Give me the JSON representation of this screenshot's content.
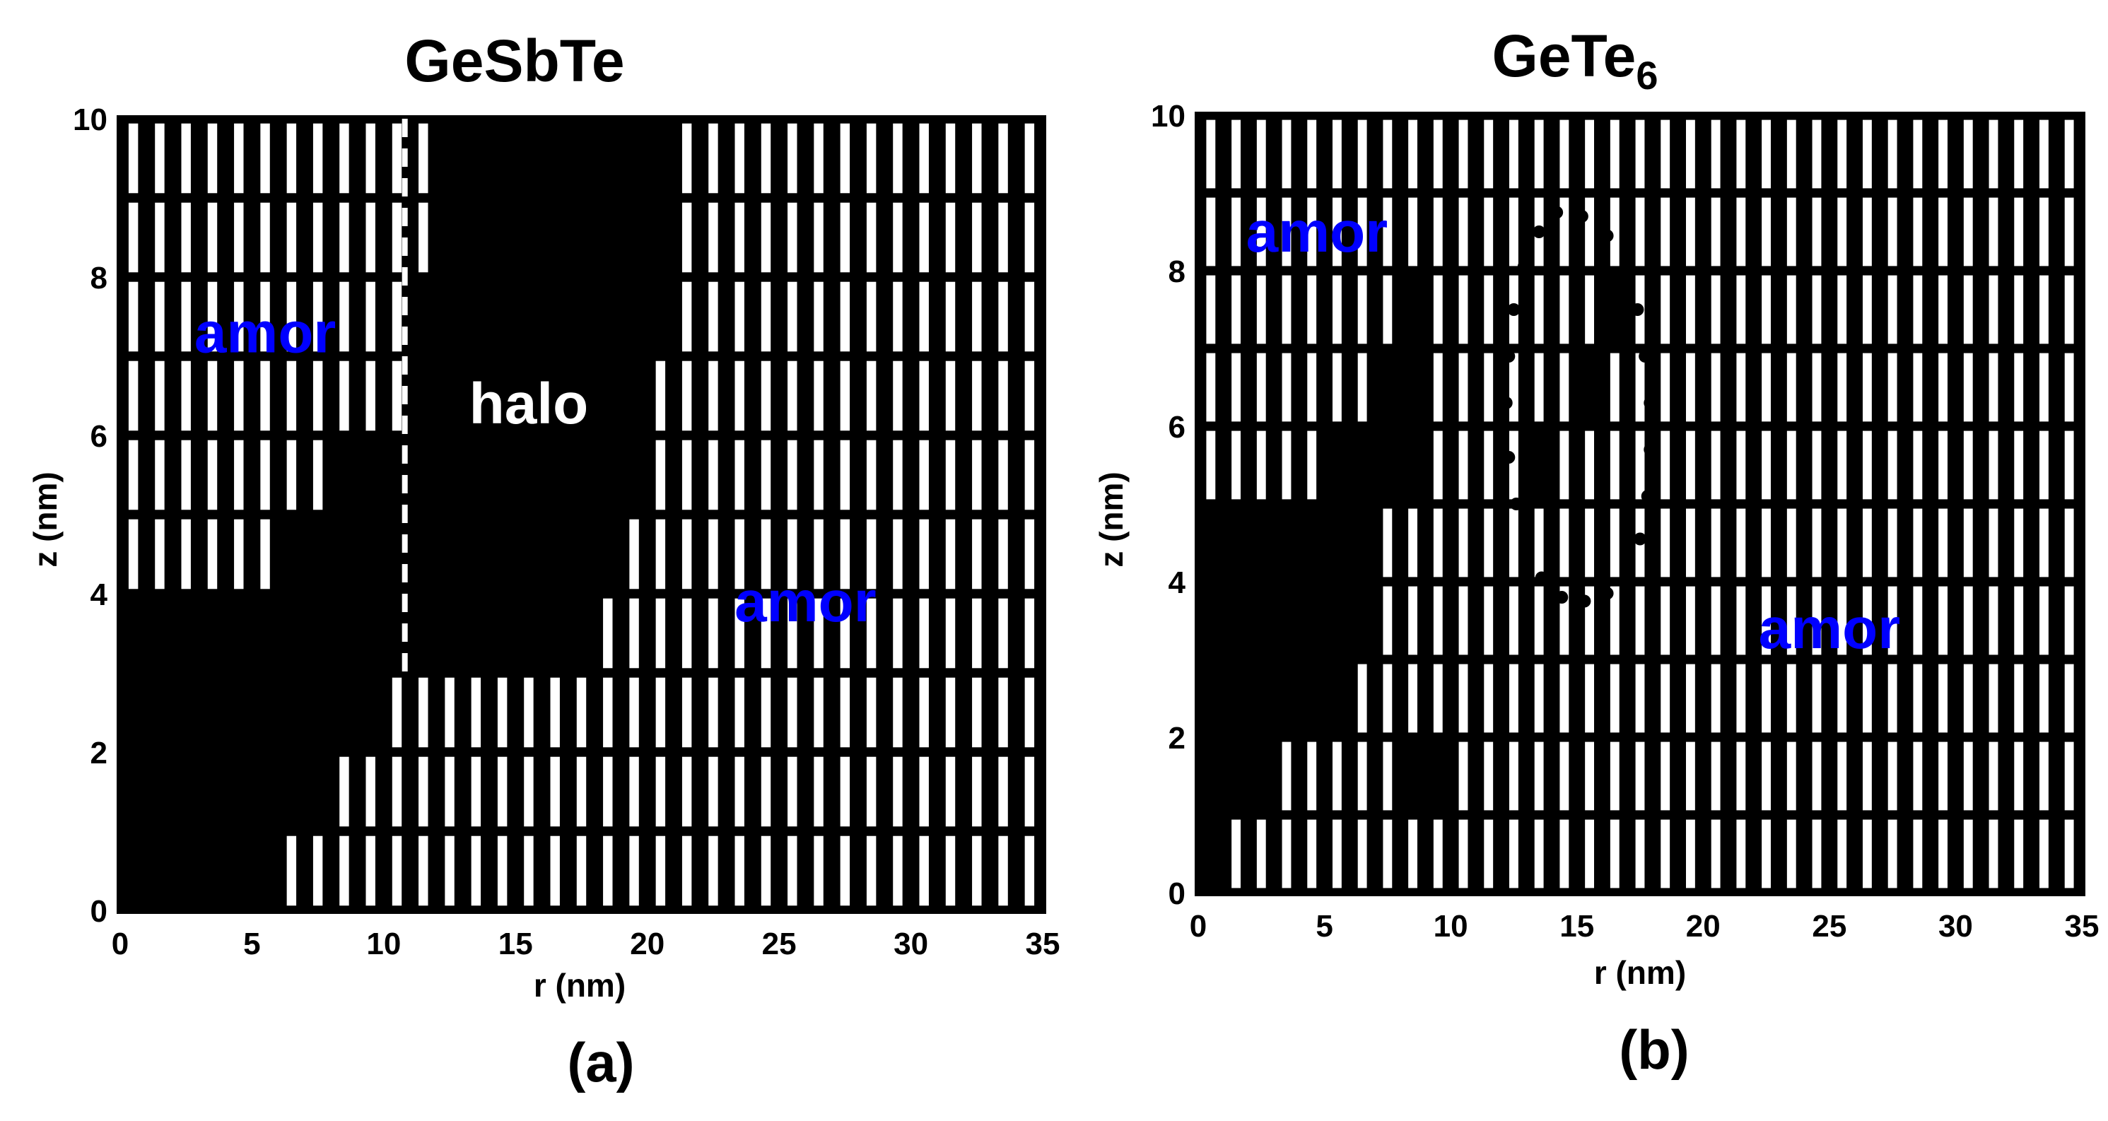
{
  "figure": {
    "panels": [
      "(a)",
      "(b)"
    ]
  },
  "colors": {
    "cell_fill": "#000000",
    "cell_gap": "#ffffff",
    "annotation": "#0000ff",
    "halo_text": "#ffffff",
    "dashed_line": "#ffffff"
  },
  "chart_data": [
    {
      "type": "heatmap",
      "panel_label": "(a)",
      "title": "GeSbTe",
      "xlabel": "r (nm)",
      "ylabel": "z (nm)",
      "xlim": [
        0,
        35
      ],
      "ylim": [
        0,
        10
      ],
      "xticks": [
        0,
        5,
        10,
        15,
        20,
        25,
        30,
        35
      ],
      "xtick_labels": [
        "0",
        "5",
        "10",
        "15",
        "20",
        "25",
        "30",
        "35"
      ],
      "yticks": [
        0,
        2,
        4,
        6,
        8,
        10
      ],
      "ytick_labels": [
        "0",
        "2",
        "4",
        "6",
        "8",
        "10"
      ],
      "grid": {
        "nr": 35,
        "nz": 10,
        "note": "cell columns 1 nm wide in r, rows 1 nm tall in z; white cell = amorphous grain, black = crystalline/halo"
      },
      "crystalline_spans_by_row": [
        {
          "z_range": [
            0,
            1
          ],
          "spans": [
            [
              0,
              6.2
            ]
          ]
        },
        {
          "z_range": [
            1,
            2
          ],
          "spans": [
            [
              0,
              8.2
            ]
          ]
        },
        {
          "z_range": [
            2,
            3
          ],
          "spans": [
            [
              0,
              10.3
            ]
          ]
        },
        {
          "z_range": [
            3,
            4
          ],
          "spans": [
            [
              0,
              18.5
            ]
          ]
        },
        {
          "z_range": [
            4,
            5
          ],
          "spans": [
            [
              6.1,
              19.4
            ]
          ]
        },
        {
          "z_range": [
            5,
            6
          ],
          "spans": [
            [
              8.1,
              20.4
            ]
          ]
        },
        {
          "z_range": [
            6,
            7
          ],
          "spans": [
            [
              10.8,
              20.4
            ]
          ]
        },
        {
          "z_range": [
            7,
            8
          ],
          "spans": [
            [
              11.0,
              21.3
            ]
          ]
        },
        {
          "z_range": [
            8,
            9
          ],
          "spans": [
            [
              12.0,
              21.3
            ]
          ]
        },
        {
          "z_range": [
            9,
            10
          ],
          "spans": [
            [
              12.0,
              21.3
            ]
          ]
        }
      ],
      "dashed_boundary": {
        "r": 10.8,
        "z_range": [
          3,
          10
        ]
      },
      "annotations": [
        {
          "text": "amor",
          "r": 5.5,
          "z": 7.3,
          "color": "#0000ff"
        },
        {
          "text": "halo",
          "r": 15.5,
          "z": 6.4,
          "color": "#ffffff"
        },
        {
          "text": "amor",
          "r": 26.0,
          "z": 3.9,
          "color": "#0000ff"
        }
      ]
    },
    {
      "type": "heatmap",
      "panel_label": "(b)",
      "title": "GeTe",
      "title_subscript": "6",
      "xlabel": "r (nm)",
      "ylabel": "z (nm)",
      "xlim": [
        0,
        35
      ],
      "ylim": [
        0,
        10
      ],
      "xticks": [
        0,
        5,
        10,
        15,
        20,
        25,
        30,
        35
      ],
      "xtick_labels": [
        "0",
        "5",
        "10",
        "15",
        "20",
        "25",
        "30",
        "35"
      ],
      "yticks": [
        0,
        2,
        4,
        6,
        8,
        10
      ],
      "ytick_labels": [
        "0",
        "2",
        "4",
        "6",
        "8",
        "10"
      ],
      "grid": {
        "nr": 35,
        "nz": 10,
        "note": "cell columns 1 nm wide in r, rows 1 nm tall in z; white cell = amorphous grain, black = crystalline"
      },
      "crystalline_spans_by_row": [
        {
          "z_range": [
            0,
            1
          ],
          "spans": [
            [
              0,
              1.2
            ]
          ]
        },
        {
          "z_range": [
            1,
            2
          ],
          "spans": [
            [
              0,
              3.2
            ],
            [
              8.2,
              10.4
            ]
          ]
        },
        {
          "z_range": [
            2,
            3
          ],
          "spans": [
            [
              0,
              6.1
            ]
          ]
        },
        {
          "z_range": [
            3,
            4
          ],
          "spans": [
            [
              0,
              7.1
            ]
          ]
        },
        {
          "z_range": [
            4,
            5
          ],
          "spans": [
            [
              0,
              7.1
            ]
          ]
        },
        {
          "z_range": [
            5,
            6
          ],
          "spans": [
            [
              4.8,
              9.1
            ],
            [
              13.0,
              14.3
            ]
          ]
        },
        {
          "z_range": [
            6,
            7
          ],
          "spans": [
            [
              7.1,
              9.1
            ],
            [
              15.0,
              16.3
            ]
          ]
        },
        {
          "z_range": [
            7,
            8
          ],
          "spans": [
            [
              8.2,
              9.1
            ],
            [
              16.0,
              17.3
            ]
          ]
        },
        {
          "z_range": [
            8,
            9
          ],
          "spans": []
        },
        {
          "z_range": [
            9,
            10
          ],
          "spans": []
        }
      ],
      "dotted_outline": [
        [
          14.2,
          8.75
        ],
        [
          15.2,
          8.7
        ],
        [
          16.2,
          8.45
        ],
        [
          16.9,
          8.0
        ],
        [
          17.4,
          7.5
        ],
        [
          17.7,
          6.9
        ],
        [
          17.9,
          6.3
        ],
        [
          17.9,
          5.7
        ],
        [
          17.8,
          5.1
        ],
        [
          17.5,
          4.55
        ],
        [
          17.0,
          4.1
        ],
        [
          16.2,
          3.85
        ],
        [
          15.3,
          3.75
        ],
        [
          14.4,
          3.8
        ],
        [
          13.6,
          4.05
        ],
        [
          13.0,
          4.45
        ],
        [
          12.6,
          5.0
        ],
        [
          12.3,
          5.6
        ],
        [
          12.2,
          6.3
        ],
        [
          12.3,
          6.9
        ],
        [
          12.5,
          7.5
        ],
        [
          12.9,
          8.05
        ],
        [
          13.5,
          8.5
        ]
      ],
      "annotations": [
        {
          "text": "amor",
          "r": 4.7,
          "z": 8.5,
          "color": "#0000ff"
        },
        {
          "text": "amor",
          "r": 25.0,
          "z": 3.4,
          "color": "#0000ff"
        }
      ]
    }
  ]
}
